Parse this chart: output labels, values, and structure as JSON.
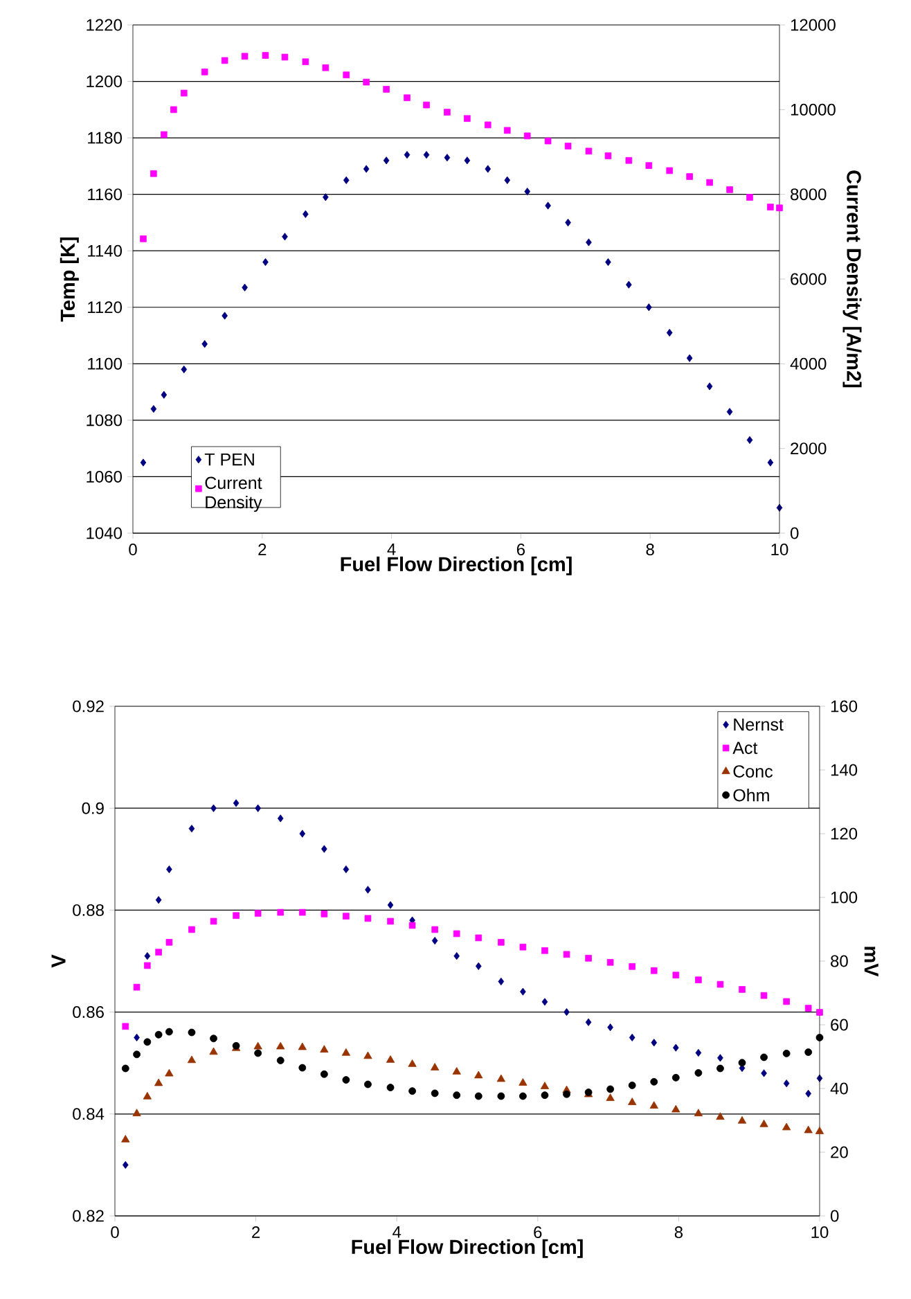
{
  "chart_data": [
    {
      "type": "scatter",
      "xlabel": "Fuel Flow Direction [cm]",
      "ylabel": "Temp [K]",
      "y2label": "Current Density [A/m2]",
      "xlim": [
        0,
        10
      ],
      "xticks": [
        0,
        2,
        4,
        6,
        8,
        10
      ],
      "ylim": [
        1040,
        1220
      ],
      "yticks": [
        1040,
        1060,
        1080,
        1100,
        1120,
        1140,
        1160,
        1180,
        1200,
        1220
      ],
      "y2lim": [
        0,
        12000
      ],
      "y2ticks": [
        0,
        2000,
        4000,
        6000,
        8000,
        10000,
        12000
      ],
      "grid": "y",
      "legend": "bottom left",
      "series": [
        {
          "name": "T PEN",
          "color": "#000080",
          "marker": "diamond",
          "x": [
            0.16,
            0.32,
            0.48,
            0.79,
            1.11,
            1.42,
            1.73,
            2.05,
            2.35,
            2.67,
            2.98,
            3.3,
            3.61,
            3.92,
            4.24,
            4.54,
            4.86,
            5.17,
            5.49,
            5.79,
            6.1,
            6.42,
            6.73,
            7.05,
            7.35,
            7.67,
            7.98,
            8.3,
            8.61,
            8.92,
            9.23,
            9.54,
            9.86,
            10
          ],
          "values": [
            1065,
            1084,
            1089,
            1098,
            1107,
            1117,
            1127,
            1136,
            1145,
            1153,
            1159,
            1165,
            1169,
            1172,
            1174,
            1174,
            1173,
            1172,
            1169,
            1165,
            1161,
            1156,
            1150,
            1143,
            1136,
            1128,
            1120,
            1111,
            1102,
            1092,
            1083,
            1073,
            1065,
            1049
          ]
        },
        {
          "name": "Current Density",
          "color": "#ff00ff",
          "marker": "square",
          "axis": "y2",
          "x": [
            0.16,
            0.32,
            0.48,
            0.63,
            0.79,
            1.11,
            1.42,
            1.73,
            2.05,
            2.35,
            2.67,
            2.98,
            3.3,
            3.61,
            3.92,
            4.24,
            4.54,
            4.86,
            5.17,
            5.49,
            5.79,
            6.1,
            6.42,
            6.73,
            7.05,
            7.35,
            7.67,
            7.98,
            8.3,
            8.61,
            8.92,
            9.23,
            9.54,
            9.86,
            10
          ],
          "values": [
            6950,
            8490,
            9410,
            10000,
            10390,
            10890,
            11160,
            11260,
            11280,
            11240,
            11130,
            10990,
            10820,
            10650,
            10480,
            10280,
            10110,
            9940,
            9790,
            9640,
            9510,
            9380,
            9260,
            9140,
            9020,
            8910,
            8800,
            8680,
            8560,
            8420,
            8280,
            8110,
            7930,
            7700,
            7680
          ]
        }
      ]
    },
    {
      "type": "scatter",
      "xlabel": "Fuel Flow Direction [cm]",
      "ylabel": "V",
      "y2label": "mV",
      "xlim": [
        0,
        10
      ],
      "xticks": [
        0,
        2,
        4,
        6,
        8,
        10
      ],
      "ylim": [
        0.82,
        0.92
      ],
      "yticks": [
        0.82,
        0.84,
        0.86,
        0.88,
        0.9,
        0.92
      ],
      "y2lim": [
        0,
        160
      ],
      "y2ticks": [
        0,
        20,
        40,
        60,
        80,
        100,
        120,
        140,
        160
      ],
      "grid": "y",
      "legend": "top right",
      "x": [
        0.15,
        0.31,
        0.46,
        0.62,
        0.77,
        1.09,
        1.4,
        1.72,
        2.03,
        2.35,
        2.66,
        2.97,
        3.28,
        3.59,
        3.91,
        4.22,
        4.54,
        4.85,
        5.16,
        5.48,
        5.79,
        6.1,
        6.41,
        6.72,
        7.03,
        7.34,
        7.65,
        7.96,
        8.28,
        8.59,
        8.9,
        9.21,
        9.53,
        9.84,
        10
      ],
      "series": [
        {
          "name": "Nernst",
          "color": "#000080",
          "marker": "diamond",
          "values": [
            0.83,
            0.855,
            0.871,
            0.882,
            0.888,
            0.896,
            0.9,
            0.901,
            0.9,
            0.898,
            0.895,
            0.892,
            0.888,
            0.884,
            0.881,
            0.878,
            0.874,
            0.871,
            0.869,
            0.866,
            0.864,
            0.862,
            0.86,
            0.858,
            0.857,
            0.855,
            0.854,
            0.853,
            0.852,
            0.851,
            0.849,
            0.848,
            0.846,
            0.844,
            0.847
          ]
        },
        {
          "name": "Act",
          "color": "#ff00ff",
          "marker": "square",
          "axis": "y2",
          "values": [
            59.5,
            71.8,
            78.6,
            82.8,
            85.9,
            89.9,
            92.5,
            94.3,
            95,
            95.3,
            95.3,
            94.8,
            94.1,
            93.4,
            92.5,
            91.2,
            89.9,
            88.6,
            87.3,
            85.9,
            84.4,
            83.3,
            82.1,
            80.9,
            79.6,
            78.3,
            77,
            75.6,
            74.1,
            72.7,
            71.1,
            69.2,
            67.3,
            65.2,
            63.9
          ]
        },
        {
          "name": "Conc",
          "color": "#993300",
          "marker": "triangle",
          "axis": "y2",
          "values": [
            23.9,
            32.1,
            37.4,
            41.6,
            44.6,
            48.8,
            51.4,
            52.6,
            53.1,
            53.1,
            52.9,
            52.1,
            51.1,
            50.1,
            48.9,
            47.6,
            46.5,
            45.2,
            44,
            42.9,
            41.7,
            40.6,
            39.4,
            38.1,
            36.9,
            35.6,
            34.5,
            33.3,
            32.1,
            31,
            29.8,
            28.7,
            27.7,
            26.8,
            26.5
          ]
        },
        {
          "name": "Ohm",
          "color": "#000000",
          "marker": "circle",
          "axis": "y2",
          "values": [
            46.3,
            50.7,
            54.6,
            56.9,
            57.8,
            57.6,
            55.7,
            53.4,
            51.1,
            48.8,
            46.5,
            44.5,
            42.7,
            41.3,
            40.3,
            39.2,
            38.5,
            37.9,
            37.6,
            37.6,
            37.6,
            37.9,
            38.2,
            38.8,
            39.8,
            41,
            42.1,
            43.4,
            44.9,
            46.3,
            48.1,
            49.8,
            51,
            51.4,
            56
          ]
        }
      ]
    }
  ]
}
